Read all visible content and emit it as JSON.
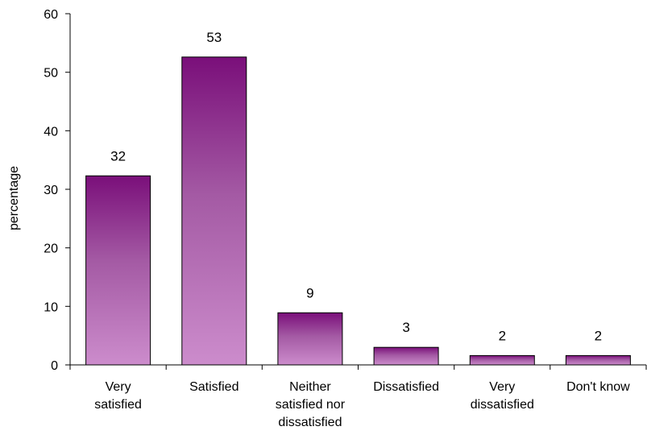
{
  "chart_data": {
    "type": "bar",
    "title": "",
    "xlabel": "",
    "ylabel": "percentage",
    "ylim": [
      0,
      60
    ],
    "yticks": [
      0,
      10,
      20,
      30,
      40,
      50,
      60
    ],
    "grid": false,
    "legend": "none",
    "categories": [
      [
        "Very",
        "satisfied"
      ],
      [
        "Satisfied"
      ],
      [
        "Neither",
        "satisfied nor",
        "dissatisfied"
      ],
      [
        "Dissatisfied"
      ],
      [
        "Very",
        "dissatisfied"
      ],
      [
        "Don't know"
      ]
    ],
    "values": [
      32.3,
      52.6,
      8.9,
      3.0,
      1.6,
      1.6
    ],
    "data_labels": [
      "32",
      "53",
      "9",
      "3",
      "2",
      "2"
    ],
    "colors": {
      "bar_top": "#7a0f7a",
      "bar_mid": "#a45aa4",
      "bar_bottom": "#cc8ccc",
      "bar_stroke": "#000000",
      "axis": "#000000"
    }
  }
}
